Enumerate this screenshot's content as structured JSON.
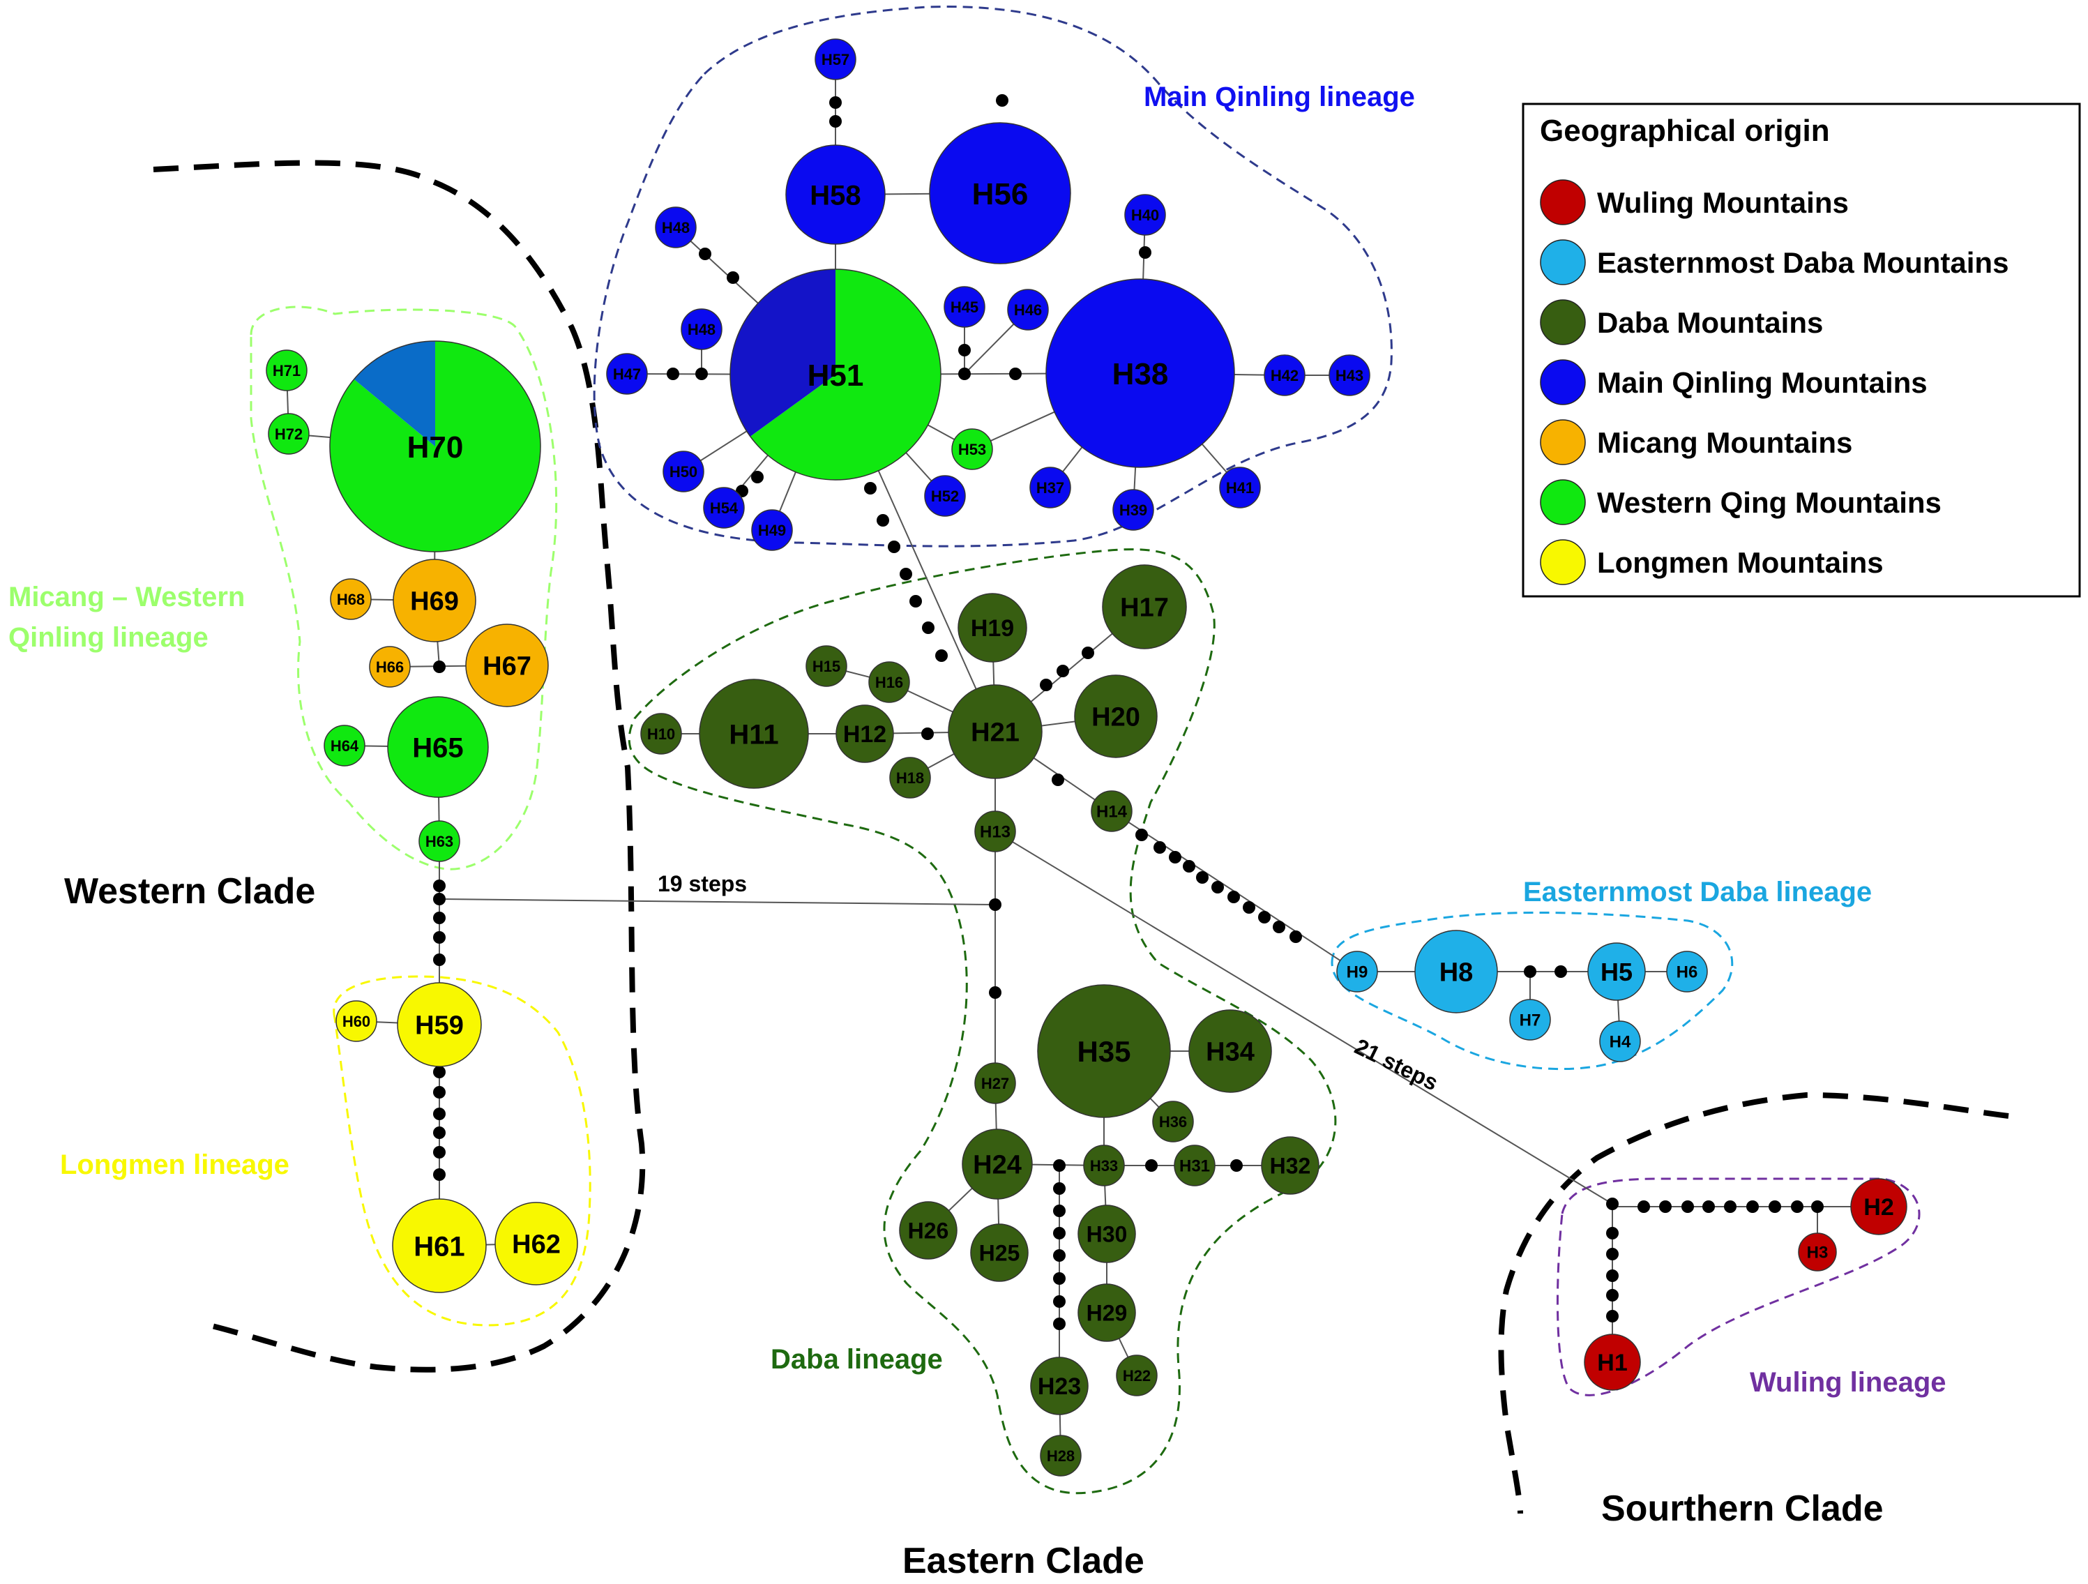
{
  "colors": {
    "wuling": "#c00000",
    "easternmost_daba": "#1fb0e8",
    "daba": "#375e11",
    "main_qinling": "#0a0af0",
    "micang": "#f7b200",
    "western_qinling": "#10e810",
    "longmen": "#f8f800",
    "pie_dark_blue": "#1414c8",
    "pie_mid_blue": "#0a6cc8",
    "micang_western_lineage_text": "#9cff6c",
    "main_qinling_lineage_text": "#1010f0",
    "easternmost_lineage_text": "#1aa6e0",
    "daba_lineage_text": "#1e6a10",
    "longmen_lineage_text": "#f8f800",
    "wuling_lineage_text": "#7030a0",
    "main_qinling_outline": "#2e3a8c",
    "micang_western_outline": "#9cff6c",
    "daba_outline": "#1e6a10",
    "easternmost_outline": "#1aa6e0",
    "longmen_outline": "#f8f800",
    "wuling_outline": "#7030a0"
  },
  "legend": {
    "title": "Geographical origin",
    "items": [
      {
        "label": "Wuling Mountains",
        "color": "#c00000"
      },
      {
        "label": "Easternmost Daba Mountains",
        "color": "#1fb0e8"
      },
      {
        "label": "Daba Mountains",
        "color": "#375e11"
      },
      {
        "label": "Main Qinling Mountains",
        "color": "#0a0af0"
      },
      {
        "label": "Micang Mountains",
        "color": "#f7b200"
      },
      {
        "label": "Western Qing Mountains",
        "color": "#10e810"
      },
      {
        "label": "Longmen Mountains",
        "color": "#f8f800"
      }
    ]
  },
  "lineages": {
    "main_qinling": "Main Qinling lineage",
    "micang_western_line1": "Micang – Western",
    "micang_western_line2": "Qinling lineage",
    "easternmost_daba": "Easternmost Daba lineage",
    "daba": "Daba lineage",
    "longmen": "Longmen lineage",
    "wuling": "Wuling lineage"
  },
  "clades": {
    "western": "Western Clade",
    "eastern": "Eastern Clade",
    "southern": "Sourthern Clade"
  },
  "steps": {
    "nineteen": "19 steps",
    "twentyone": "21 steps"
  },
  "haplotypes": [
    {
      "id": "H1",
      "region": "wuling"
    },
    {
      "id": "H2",
      "region": "wuling"
    },
    {
      "id": "H3",
      "region": "wuling"
    },
    {
      "id": "H4",
      "region": "easternmost_daba"
    },
    {
      "id": "H5",
      "region": "easternmost_daba"
    },
    {
      "id": "H6",
      "region": "easternmost_daba"
    },
    {
      "id": "H7",
      "region": "easternmost_daba"
    },
    {
      "id": "H8",
      "region": "easternmost_daba"
    },
    {
      "id": "H9",
      "region": "easternmost_daba"
    },
    {
      "id": "H10",
      "region": "daba"
    },
    {
      "id": "H11",
      "region": "daba"
    },
    {
      "id": "H12",
      "region": "daba"
    },
    {
      "id": "H13",
      "region": "daba"
    },
    {
      "id": "H14",
      "region": "daba"
    },
    {
      "id": "H15",
      "region": "daba"
    },
    {
      "id": "H16",
      "region": "daba"
    },
    {
      "id": "H17",
      "region": "daba"
    },
    {
      "id": "H18",
      "region": "daba"
    },
    {
      "id": "H19",
      "region": "daba"
    },
    {
      "id": "H20",
      "region": "daba"
    },
    {
      "id": "H21",
      "region": "daba"
    },
    {
      "id": "H22",
      "region": "daba"
    },
    {
      "id": "H23",
      "region": "daba"
    },
    {
      "id": "H24",
      "region": "daba"
    },
    {
      "id": "H25",
      "region": "daba"
    },
    {
      "id": "H26",
      "region": "daba"
    },
    {
      "id": "H27",
      "region": "daba"
    },
    {
      "id": "H28",
      "region": "daba"
    },
    {
      "id": "H29",
      "region": "daba"
    },
    {
      "id": "H30",
      "region": "daba"
    },
    {
      "id": "H31",
      "region": "daba"
    },
    {
      "id": "H32",
      "region": "daba"
    },
    {
      "id": "H33",
      "region": "daba"
    },
    {
      "id": "H34",
      "region": "daba"
    },
    {
      "id": "H35",
      "region": "daba"
    },
    {
      "id": "H36",
      "region": "daba"
    },
    {
      "id": "H37",
      "region": "main_qinling"
    },
    {
      "id": "H38",
      "region": "main_qinling"
    },
    {
      "id": "H39",
      "region": "main_qinling"
    },
    {
      "id": "H40",
      "region": "main_qinling"
    },
    {
      "id": "H41",
      "region": "main_qinling"
    },
    {
      "id": "H42",
      "region": "main_qinling"
    },
    {
      "id": "H43",
      "region": "main_qinling"
    },
    {
      "id": "H45",
      "region": "main_qinling"
    },
    {
      "id": "H46",
      "region": "main_qinling"
    },
    {
      "id": "H47",
      "region": "main_qinling"
    },
    {
      "id": "H48",
      "region": "main_qinling"
    },
    {
      "id": "H48",
      "region": "main_qinling"
    },
    {
      "id": "H49",
      "region": "main_qinling"
    },
    {
      "id": "H50",
      "region": "main_qinling"
    },
    {
      "id": "H51",
      "region": "pie_51"
    },
    {
      "id": "H52",
      "region": "main_qinling"
    },
    {
      "id": "H53",
      "region": "western_qinling"
    },
    {
      "id": "H53",
      "region": "main_qinling"
    },
    {
      "id": "H54",
      "region": "main_qinling"
    },
    {
      "id": "H56",
      "region": "main_qinling"
    },
    {
      "id": "H57",
      "region": "main_qinling"
    },
    {
      "id": "H58",
      "region": "main_qinling"
    },
    {
      "id": "H59",
      "region": "longmen"
    },
    {
      "id": "H60",
      "region": "longmen"
    },
    {
      "id": "H61",
      "region": "longmen"
    },
    {
      "id": "H62",
      "region": "longmen"
    },
    {
      "id": "H63",
      "region": "western_qinling"
    },
    {
      "id": "H64",
      "region": "western_qinling"
    },
    {
      "id": "H65",
      "region": "western_qinling"
    },
    {
      "id": "H66",
      "region": "micang"
    },
    {
      "id": "H67",
      "region": "micang"
    },
    {
      "id": "H68",
      "region": "micang"
    },
    {
      "id": "H69",
      "region": "micang"
    },
    {
      "id": "H70",
      "region": "pie_70"
    },
    {
      "id": "H71",
      "region": "western_qinling"
    },
    {
      "id": "H72",
      "region": "western_qinling"
    }
  ],
  "pies": {
    "H51": [
      {
        "region": "western_qinling",
        "share": 0.65
      },
      {
        "region": "pie_dark_blue",
        "share": 0.35
      }
    ],
    "H70": [
      {
        "region": "western_qinling",
        "share": 0.86
      },
      {
        "region": "pie_mid_blue",
        "share": 0.14
      }
    ]
  }
}
